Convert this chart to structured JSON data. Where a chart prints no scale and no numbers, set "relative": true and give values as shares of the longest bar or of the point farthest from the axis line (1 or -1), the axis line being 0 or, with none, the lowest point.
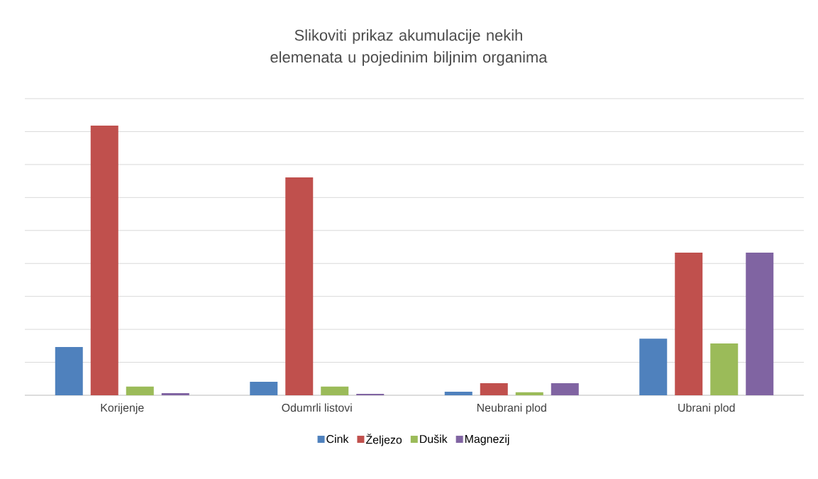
{
  "chart_data": {
    "type": "bar",
    "title": "Slikoviti prikaz akumulacije nekih elemenata u pojedinim biljnim organima",
    "categories": [
      "Korijenje",
      "Odumrli listovi",
      "Neubrani plod",
      "Ubrani plod"
    ],
    "relative": true,
    "grid": "y",
    "legend": "bottom",
    "series": [
      {
        "name": "Cink",
        "color": "#4f81bd",
        "values": [
          0.179,
          0.05,
          0.013,
          0.21
        ]
      },
      {
        "name": "Željezo",
        "color": "#c0504d",
        "values": [
          1,
          0.808,
          0.045,
          0.529
        ]
      },
      {
        "name": "Dušik",
        "color": "#9bbb59",
        "values": [
          0.032,
          0.032,
          0.011,
          0.192
        ]
      },
      {
        "name": "Magnezij",
        "color": "#8064a2",
        "values": [
          0.008,
          0.005,
          0.045,
          0.529
        ]
      }
    ]
  }
}
